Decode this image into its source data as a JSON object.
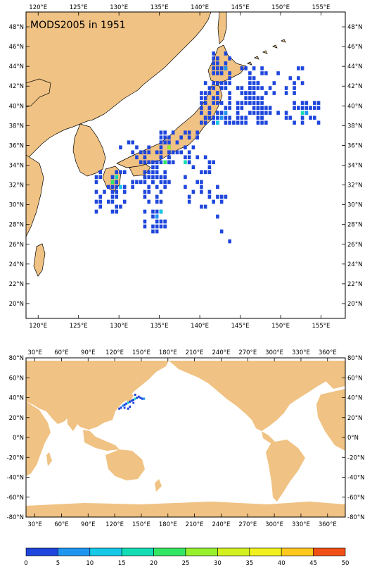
{
  "regional_map": {
    "title": "MODS2005 in 1951",
    "lon_labels": [
      "120°E",
      "125°E",
      "130°E",
      "135°E",
      "140°E",
      "145°E",
      "150°E",
      "155°E"
    ],
    "lat_labels": [
      "48°N",
      "46°N",
      "44°N",
      "42°N",
      "40°N",
      "38°N",
      "36°N",
      "34°N",
      "32°N",
      "30°N",
      "28°N",
      "26°N",
      "24°N",
      "22°N",
      "20°N"
    ],
    "lon_range": [
      118.5,
      158
    ],
    "lat_range": [
      18.5,
      49.5
    ]
  },
  "global_map": {
    "lon_labels": [
      "30°E",
      "60°E",
      "90°E",
      "120°E",
      "150°E",
      "180°E",
      "210°E",
      "240°E",
      "270°E",
      "300°E",
      "330°E",
      "360°E"
    ],
    "lat_labels": [
      "80°N",
      "60°N",
      "40°N",
      "20°N",
      "0°N",
      "-20°N",
      "-40°N",
      "-60°N",
      "-80°N"
    ],
    "lon_range": [
      20,
      380
    ],
    "lat_range": [
      -80,
      80
    ]
  },
  "colorbar": {
    "ticks": [
      "0",
      "5",
      "10",
      "15",
      "20",
      "25",
      "30",
      "35",
      "40",
      "45",
      "50"
    ],
    "colors": [
      "#1e46dc",
      "#1e96f0",
      "#14c8e6",
      "#14dcb4",
      "#32e664",
      "#96f02d",
      "#d2f01e",
      "#f0f01e",
      "#ffc81e",
      "#ff9614",
      "#f05014"
    ]
  },
  "colors": {
    "land": "#f0c283",
    "ocean": "#ffffff",
    "low_count": "#1e46dc"
  }
}
